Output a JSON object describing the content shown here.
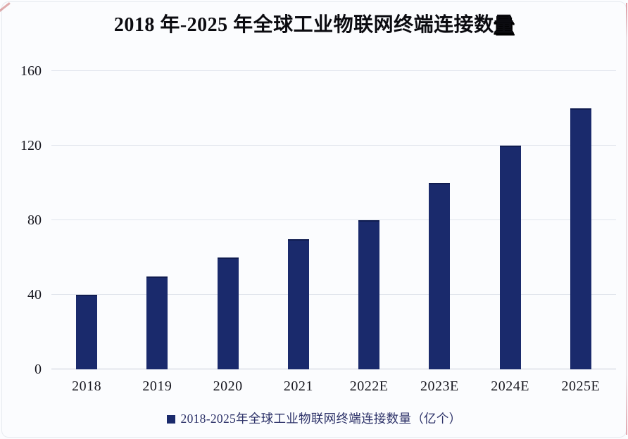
{
  "title": {
    "text": "2018 年-2025 年全球工业物联网终端连接数",
    "suffix": "量"
  },
  "chart_data": {
    "type": "bar",
    "title": "2018 年-2025 年全球工业物联网终端连接数量",
    "categories": [
      "2018",
      "2019",
      "2020",
      "2021",
      "2022E",
      "2023E",
      "2024E",
      "2025E"
    ],
    "values": [
      40,
      50,
      60,
      70,
      80,
      100,
      120,
      140
    ],
    "unit": "亿个",
    "yticks": [
      0,
      40,
      80,
      120,
      160
    ],
    "ylim": [
      0,
      160
    ],
    "grid": true,
    "xlabel": "",
    "ylabel": "",
    "legend": {
      "label": "2018-2025年全球工业物联网终端连接数量（亿个）",
      "position": "bottom"
    }
  },
  "colors": {
    "bar": "#1a2a6c",
    "bar-top": "#101c50",
    "grid": "#dfe3eb",
    "axis": "#c7cdd8",
    "legend-text": "#2c3168",
    "title-text": "#0b0b10",
    "tick-text": "#17171f",
    "crop-mark": "#c96a6a",
    "frame": "#e7eaef",
    "page-bg": "#fbfcfe"
  }
}
